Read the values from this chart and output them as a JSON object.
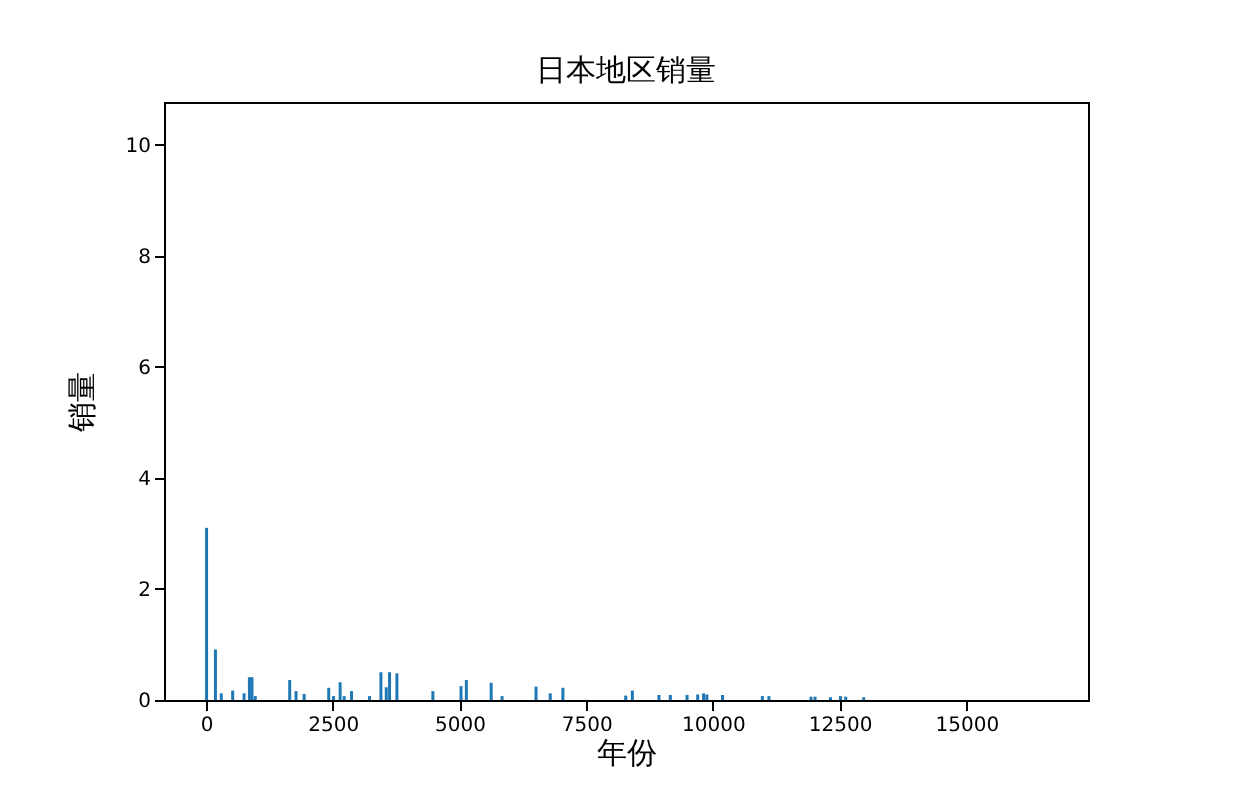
{
  "chart_data": {
    "type": "bar",
    "title": "日本地区销量",
    "xlabel": "年份",
    "ylabel": "销量",
    "color": "#1f77b4",
    "x": [
      10,
      185,
      300,
      525,
      750,
      855,
      905,
      970,
      1650,
      1775,
      1935,
      2420,
      2515,
      2645,
      2725,
      2870,
      3225,
      3450,
      3555,
      3620,
      3765,
      4475,
      5030,
      5135,
      5625,
      5840,
      6510,
      6790,
      7040,
      8280,
      8410,
      8935,
      9160,
      9490,
      9700,
      9815,
      9880,
      10190,
      10975,
      11105,
      11935,
      12015,
      12320,
      12515,
      12620,
      12975
    ],
    "values": [
      3.1,
      0.91,
      0.12,
      0.17,
      0.12,
      0.41,
      0.41,
      0.07,
      0.36,
      0.16,
      0.11,
      0.22,
      0.07,
      0.32,
      0.07,
      0.16,
      0.07,
      0.5,
      0.23,
      0.5,
      0.48,
      0.16,
      0.25,
      0.36,
      0.31,
      0.07,
      0.24,
      0.12,
      0.22,
      0.08,
      0.17,
      0.09,
      0.09,
      0.09,
      0.1,
      0.12,
      0.1,
      0.09,
      0.07,
      0.07,
      0.06,
      0.06,
      0.05,
      0.07,
      0.06,
      0.05
    ],
    "xlim": [
      -830,
      17400
    ],
    "ylim": [
      0,
      10.77
    ],
    "xticks": [
      0,
      2500,
      5000,
      7500,
      10000,
      12500,
      15000
    ],
    "yticks": [
      0,
      2,
      4,
      6,
      8,
      10
    ],
    "grid": false
  }
}
